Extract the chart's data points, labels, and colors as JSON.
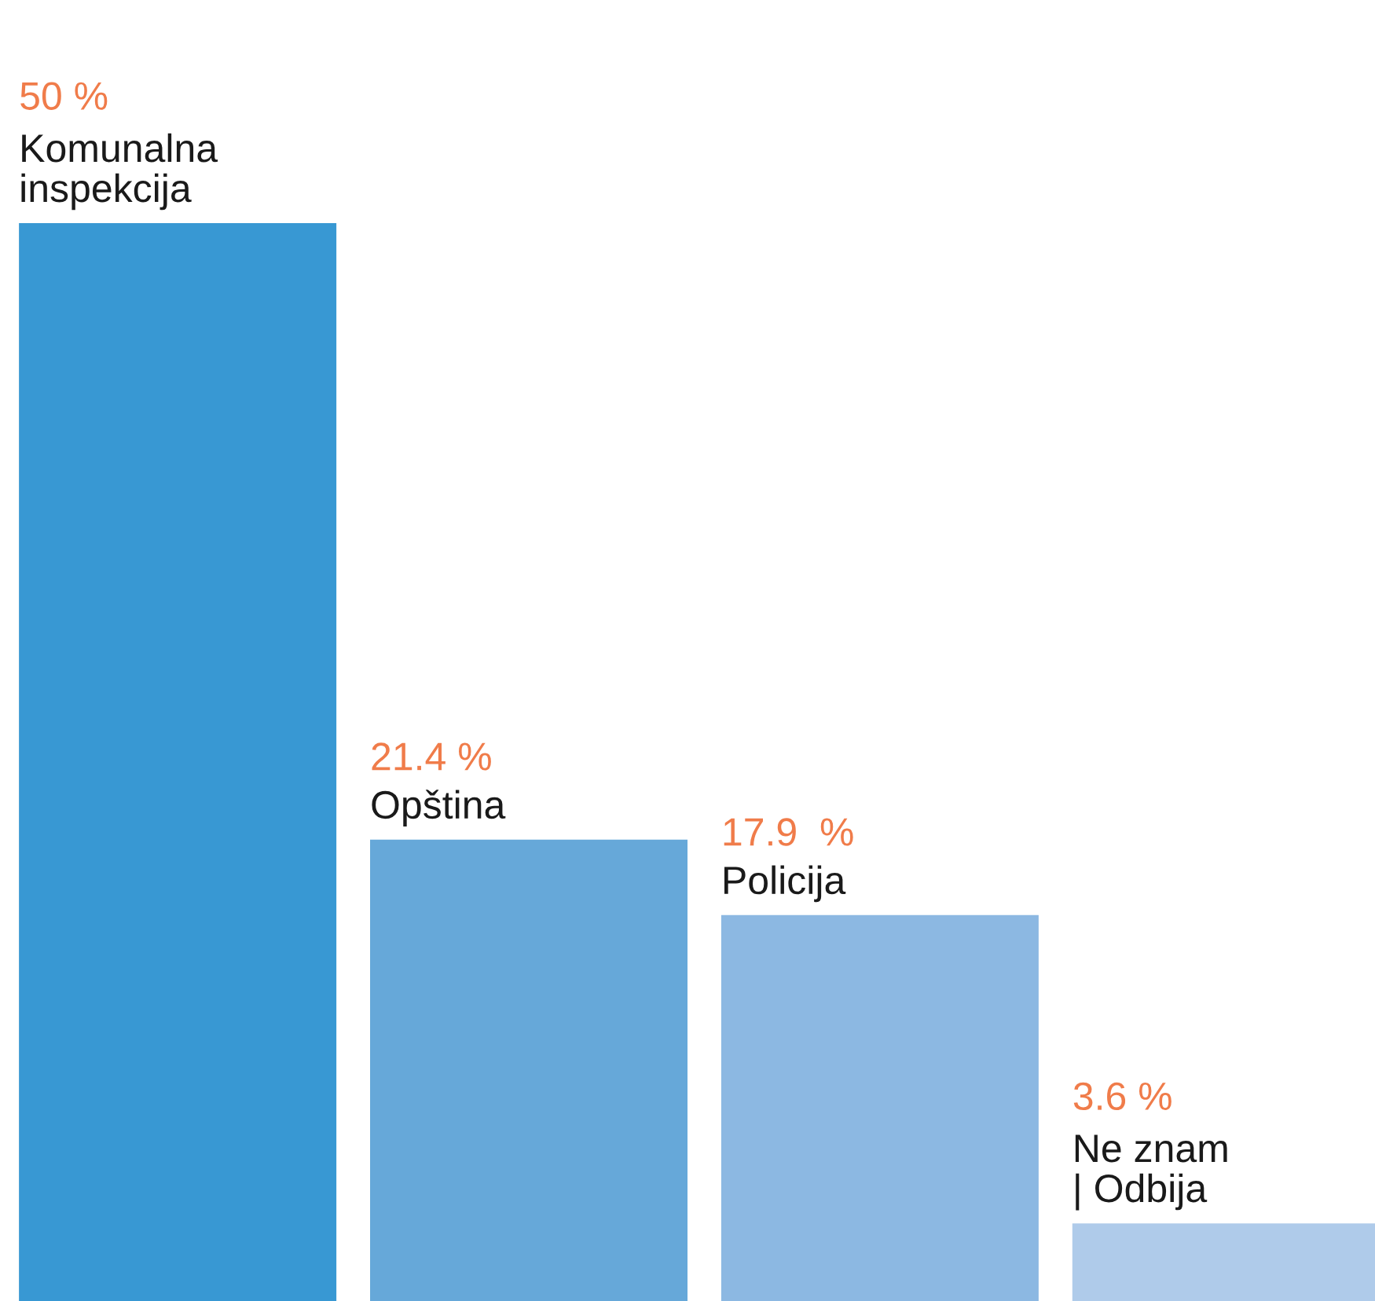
{
  "chart_data": {
    "type": "bar",
    "categories": [
      "Komunalna\ninspekcija",
      "Opština",
      "Policija",
      "Ne znam\n| Odbija"
    ],
    "values": [
      50,
      21.4,
      17.9,
      3.6
    ],
    "colors": [
      "#3898d3",
      "#66a8d9",
      "#8cb8e2",
      "#afcbea"
    ],
    "value_labels": [
      "50 %",
      "21.4 %",
      "17.9  %",
      "3.6 %"
    ]
  }
}
